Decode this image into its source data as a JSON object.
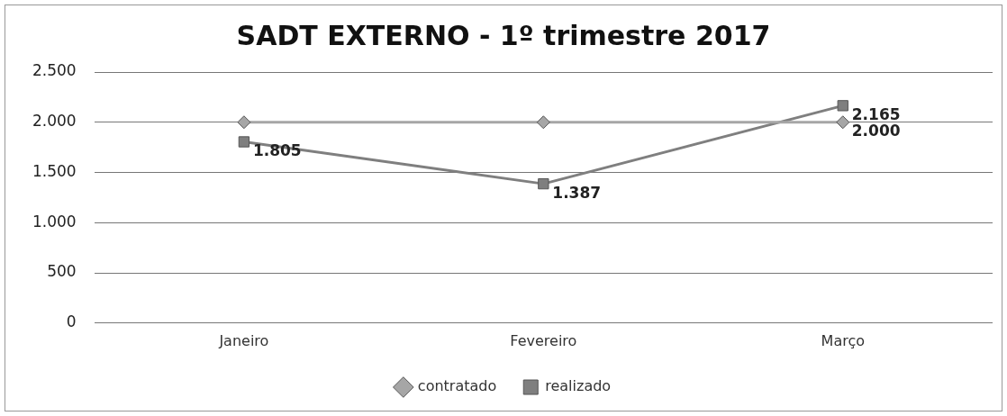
{
  "chart_data": {
    "type": "line",
    "title": "SADT EXTERNO - 1º trimestre 2017",
    "categories": [
      "Janeiro",
      "Fevereiro",
      "Março"
    ],
    "series": [
      {
        "name": "contratado",
        "color": "#a6a6a6",
        "marker": "diamond",
        "values": [
          2000,
          2000,
          2000
        ],
        "value_labels": [
          null,
          null,
          "2.000"
        ]
      },
      {
        "name": "realizado",
        "color": "#7f7f7f",
        "marker": "square",
        "values": [
          1805,
          1387,
          2165
        ],
        "value_labels": [
          "1.805",
          "1.387",
          "2.165"
        ]
      }
    ],
    "ylim": [
      0,
      2500
    ],
    "yticks": [
      {
        "value": 0,
        "label": "0"
      },
      {
        "value": 500,
        "label": "500"
      },
      {
        "value": 1000,
        "label": "1.000"
      },
      {
        "value": 1500,
        "label": "1.500"
      },
      {
        "value": 2000,
        "label": "2.000"
      },
      {
        "value": 2500,
        "label": "2.500"
      }
    ],
    "grid": "y",
    "legend": "bottom",
    "line_style": "solid"
  }
}
